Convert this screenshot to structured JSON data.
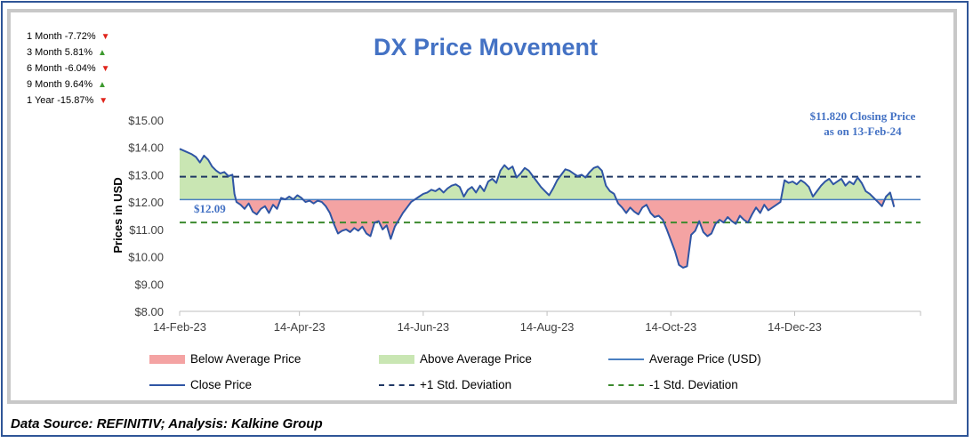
{
  "performance": [
    {
      "label": "1 Month -7.72%",
      "dir": "down"
    },
    {
      "label": "3 Month 5.81%",
      "dir": "up"
    },
    {
      "label": "6 Month -6.04%",
      "dir": "down"
    },
    {
      "label": "9 Month 9.64%",
      "dir": "up"
    },
    {
      "label": "1 Year -15.87%",
      "dir": "down"
    }
  ],
  "annotations": {
    "closing_line1": "$11.820 Closing Price",
    "closing_line2": "as on 13-Feb-24",
    "average_value_label": "$12.09"
  },
  "legend": {
    "below": "Below Average Price",
    "above": "Above Average Price",
    "average": "Average Price (USD)",
    "close": "Close Price",
    "plus_std": "+1 Std. Deviation",
    "minus_std": "-1 Std. Deviation"
  },
  "footer": {
    "source": "Data Source: REFINITIV; Analysis: Kalkine Group"
  },
  "colors": {
    "title": "#4472c4",
    "close_line": "#2f55a4",
    "average_line": "#4a7fc1",
    "below_fill": "#f4a3a3",
    "above_fill": "#c9e6b3",
    "plus_std": "#203864",
    "minus_std": "#3c8a2e",
    "down_arrow": "#e0241b",
    "up_arrow": "#3d9a2f"
  },
  "chart_data": {
    "type": "line",
    "title": "DX Price Movement",
    "ylabel": "Prices in USD",
    "xlabel": "",
    "ylim": [
      8,
      15
    ],
    "yticks": [
      "$8.00",
      "$9.00",
      "$10.00",
      "$11.00",
      "$12.00",
      "$13.00",
      "$14.00",
      "$15.00"
    ],
    "xticks": [
      {
        "label": "14-Feb-23",
        "day": 0
      },
      {
        "label": "14-Apr-23",
        "day": 59
      },
      {
        "label": "14-Jun-23",
        "day": 120
      },
      {
        "label": "14-Aug-23",
        "day": 181
      },
      {
        "label": "14-Oct-23",
        "day": 242
      },
      {
        "label": "14-Dec-23",
        "day": 303
      }
    ],
    "x_range_days": [
      0,
      365
    ],
    "average": 12.09,
    "plus_1_std": 12.93,
    "minus_1_std": 11.25,
    "close_series": [
      [
        0,
        13.95
      ],
      [
        3,
        13.85
      ],
      [
        6,
        13.75
      ],
      [
        8,
        13.65
      ],
      [
        10,
        13.45
      ],
      [
        12,
        13.7
      ],
      [
        14,
        13.55
      ],
      [
        16,
        13.3
      ],
      [
        18,
        13.15
      ],
      [
        20,
        13.05
      ],
      [
        22,
        13.1
      ],
      [
        24,
        12.95
      ],
      [
        26,
        13.0
      ],
      [
        27,
        12.3
      ],
      [
        28,
        12.0
      ],
      [
        30,
        11.9
      ],
      [
        32,
        11.75
      ],
      [
        34,
        11.95
      ],
      [
        36,
        11.65
      ],
      [
        38,
        11.55
      ],
      [
        40,
        11.75
      ],
      [
        42,
        11.85
      ],
      [
        44,
        11.6
      ],
      [
        46,
        11.9
      ],
      [
        48,
        11.75
      ],
      [
        50,
        12.15
      ],
      [
        52,
        12.1
      ],
      [
        54,
        12.2
      ],
      [
        56,
        12.1
      ],
      [
        58,
        12.25
      ],
      [
        60,
        12.15
      ],
      [
        62,
        12.0
      ],
      [
        64,
        12.05
      ],
      [
        66,
        11.95
      ],
      [
        68,
        12.05
      ],
      [
        70,
        12.0
      ],
      [
        72,
        11.85
      ],
      [
        74,
        11.6
      ],
      [
        76,
        11.2
      ],
      [
        78,
        10.85
      ],
      [
        80,
        10.95
      ],
      [
        82,
        11.0
      ],
      [
        84,
        10.9
      ],
      [
        86,
        11.05
      ],
      [
        88,
        10.95
      ],
      [
        90,
        11.1
      ],
      [
        92,
        10.85
      ],
      [
        94,
        10.75
      ],
      [
        96,
        11.25
      ],
      [
        98,
        11.3
      ],
      [
        100,
        11.0
      ],
      [
        102,
        11.15
      ],
      [
        104,
        10.65
      ],
      [
        106,
        11.1
      ],
      [
        108,
        11.35
      ],
      [
        110,
        11.6
      ],
      [
        112,
        11.8
      ],
      [
        114,
        12.0
      ],
      [
        116,
        12.1
      ],
      [
        118,
        12.2
      ],
      [
        120,
        12.3
      ],
      [
        122,
        12.35
      ],
      [
        124,
        12.45
      ],
      [
        126,
        12.4
      ],
      [
        128,
        12.5
      ],
      [
        130,
        12.35
      ],
      [
        132,
        12.5
      ],
      [
        134,
        12.6
      ],
      [
        136,
        12.65
      ],
      [
        138,
        12.55
      ],
      [
        140,
        12.2
      ],
      [
        142,
        12.45
      ],
      [
        144,
        12.55
      ],
      [
        146,
        12.35
      ],
      [
        148,
        12.6
      ],
      [
        150,
        12.4
      ],
      [
        152,
        12.75
      ],
      [
        154,
        12.85
      ],
      [
        156,
        12.7
      ],
      [
        158,
        13.15
      ],
      [
        160,
        13.35
      ],
      [
        162,
        13.2
      ],
      [
        164,
        13.3
      ],
      [
        166,
        12.9
      ],
      [
        168,
        13.05
      ],
      [
        170,
        13.25
      ],
      [
        172,
        13.15
      ],
      [
        174,
        12.95
      ],
      [
        176,
        12.75
      ],
      [
        178,
        12.55
      ],
      [
        180,
        12.4
      ],
      [
        182,
        12.25
      ],
      [
        184,
        12.5
      ],
      [
        186,
        12.8
      ],
      [
        188,
        13.0
      ],
      [
        190,
        13.2
      ],
      [
        192,
        13.15
      ],
      [
        194,
        13.05
      ],
      [
        196,
        12.95
      ],
      [
        198,
        13.0
      ],
      [
        200,
        12.9
      ],
      [
        202,
        13.1
      ],
      [
        204,
        13.25
      ],
      [
        206,
        13.3
      ],
      [
        208,
        13.15
      ],
      [
        210,
        12.6
      ],
      [
        212,
        12.4
      ],
      [
        214,
        12.3
      ],
      [
        216,
        11.95
      ],
      [
        218,
        11.8
      ],
      [
        220,
        11.6
      ],
      [
        222,
        11.8
      ],
      [
        224,
        11.65
      ],
      [
        226,
        11.55
      ],
      [
        228,
        11.8
      ],
      [
        230,
        11.9
      ],
      [
        232,
        11.6
      ],
      [
        234,
        11.45
      ],
      [
        236,
        11.5
      ],
      [
        238,
        11.35
      ],
      [
        240,
        11.0
      ],
      [
        242,
        10.6
      ],
      [
        244,
        10.2
      ],
      [
        246,
        9.7
      ],
      [
        248,
        9.6
      ],
      [
        250,
        9.65
      ],
      [
        252,
        10.8
      ],
      [
        254,
        10.95
      ],
      [
        256,
        11.3
      ],
      [
        258,
        10.9
      ],
      [
        260,
        10.75
      ],
      [
        262,
        10.85
      ],
      [
        264,
        11.2
      ],
      [
        266,
        11.35
      ],
      [
        268,
        11.25
      ],
      [
        270,
        11.45
      ],
      [
        272,
        11.3
      ],
      [
        274,
        11.2
      ],
      [
        276,
        11.5
      ],
      [
        278,
        11.35
      ],
      [
        280,
        11.25
      ],
      [
        282,
        11.55
      ],
      [
        284,
        11.8
      ],
      [
        286,
        11.6
      ],
      [
        288,
        11.9
      ],
      [
        290,
        11.7
      ],
      [
        292,
        11.8
      ],
      [
        294,
        11.9
      ],
      [
        296,
        12.0
      ],
      [
        298,
        12.8
      ],
      [
        300,
        12.7
      ],
      [
        302,
        12.75
      ],
      [
        304,
        12.65
      ],
      [
        306,
        12.8
      ],
      [
        308,
        12.7
      ],
      [
        310,
        12.55
      ],
      [
        312,
        12.2
      ],
      [
        314,
        12.4
      ],
      [
        316,
        12.6
      ],
      [
        318,
        12.75
      ],
      [
        320,
        12.85
      ],
      [
        322,
        12.65
      ],
      [
        324,
        12.75
      ],
      [
        326,
        12.85
      ],
      [
        328,
        12.6
      ],
      [
        330,
        12.75
      ],
      [
        332,
        12.65
      ],
      [
        334,
        12.9
      ],
      [
        336,
        12.7
      ],
      [
        338,
        12.4
      ],
      [
        340,
        12.3
      ],
      [
        342,
        12.15
      ],
      [
        344,
        12.0
      ],
      [
        346,
        11.85
      ],
      [
        348,
        12.2
      ],
      [
        350,
        12.35
      ],
      [
        352,
        11.82
      ]
    ]
  }
}
